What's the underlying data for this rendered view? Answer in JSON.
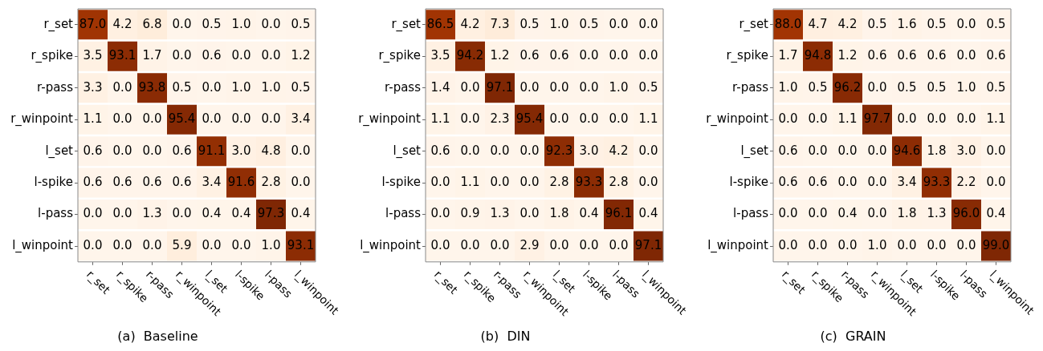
{
  "chart_data": [
    {
      "type": "heatmap",
      "title": "(a)  Baseline",
      "data_labels": true,
      "categories": [
        "r_set",
        "r_spike",
        "r-pass",
        "r_winpoint",
        "l_set",
        "l-spike",
        "l-pass",
        "l_winpoint"
      ],
      "y_categories": [
        "r_set",
        "r_spike",
        "r-pass",
        "r_winpoint",
        "l_set",
        "l-spike",
        "l-pass",
        "l_winpoint"
      ],
      "cells": [
        [
          87.0,
          4.2,
          6.8,
          0.0,
          0.5,
          1.0,
          0.0,
          0.5
        ],
        [
          3.5,
          93.1,
          1.7,
          0.0,
          0.6,
          0.0,
          0.0,
          1.2
        ],
        [
          3.3,
          0.0,
          93.8,
          0.5,
          0.0,
          1.0,
          1.0,
          0.5
        ],
        [
          1.1,
          0.0,
          0.0,
          95.4,
          0.0,
          0.0,
          0.0,
          3.4
        ],
        [
          0.6,
          0.0,
          0.0,
          0.6,
          91.1,
          3.0,
          4.8,
          0.0
        ],
        [
          0.6,
          0.6,
          0.6,
          0.6,
          3.4,
          91.6,
          2.8,
          0.0
        ],
        [
          0.0,
          0.0,
          1.3,
          0.0,
          0.4,
          0.4,
          97.3,
          0.4
        ],
        [
          0.0,
          0.0,
          0.0,
          5.9,
          0.0,
          0.0,
          1.0,
          93.1
        ]
      ],
      "cell_labels": [
        [
          "87.0",
          "4.2",
          "6.8",
          "0.0",
          "0.5",
          "1.0",
          "0.0",
          "0.5"
        ],
        [
          "3.5",
          "93.1",
          "1.7",
          "0.0",
          "0.6",
          "0.0",
          "0.0",
          "1.2"
        ],
        [
          "3.3",
          "0.0",
          "93.8",
          "0.5",
          "0.0",
          "1.0",
          "1.0",
          "0.5"
        ],
        [
          "1.1",
          "0.0",
          "0.0",
          "95.4",
          "0.0",
          "0.0",
          "0.0",
          "3.4"
        ],
        [
          "0.6",
          "0.0",
          "0.0",
          "0.6",
          "91.1",
          "3.0",
          "4.8",
          "0.0"
        ],
        [
          "0.6",
          "0.6",
          "0.6",
          "0.6",
          "3.4",
          "91.6",
          "2.8",
          "0.0"
        ],
        [
          "0.0",
          "0.0",
          "1.3",
          "0.0",
          "0.4",
          "0.4",
          "97.3",
          "0.4"
        ],
        [
          "0.0",
          "0.0",
          "0.0",
          "5.9",
          "0.0",
          "0.0",
          "1.0",
          "93.1"
        ]
      ]
    },
    {
      "type": "heatmap",
      "title": "(b)  DIN",
      "data_labels": true,
      "categories": [
        "r_set",
        "r_spike",
        "r-pass",
        "r_winpoint",
        "l_set",
        "l-spike",
        "l-pass",
        "l_winpoint"
      ],
      "y_categories": [
        "r_set",
        "r_spike",
        "r-pass",
        "r_winpoint",
        "l_set",
        "l-spike",
        "l-pass",
        "l_winpoint"
      ],
      "cells": [
        [
          86.5,
          4.2,
          7.3,
          0.5,
          1.0,
          0.5,
          0.0,
          0.0
        ],
        [
          3.5,
          94.2,
          1.2,
          0.6,
          0.6,
          0.0,
          0.0,
          0.0
        ],
        [
          1.4,
          0.0,
          97.1,
          0.0,
          0.0,
          0.0,
          1.0,
          0.5
        ],
        [
          1.1,
          0.0,
          2.3,
          95.4,
          0.0,
          0.0,
          0.0,
          1.1
        ],
        [
          0.6,
          0.0,
          0.0,
          0.0,
          92.3,
          3.0,
          4.2,
          0.0
        ],
        [
          0.0,
          1.1,
          0.0,
          0.0,
          2.8,
          93.3,
          2.8,
          0.0
        ],
        [
          0.0,
          0.9,
          1.3,
          0.0,
          1.8,
          0.4,
          96.1,
          0.4
        ],
        [
          0.0,
          0.0,
          0.0,
          2.9,
          0.0,
          0.0,
          0.0,
          97.1
        ]
      ],
      "cell_labels": [
        [
          "86.5",
          "4.2",
          "7.3",
          "0.5",
          "1.0",
          "0.5",
          "0.0",
          "0.0"
        ],
        [
          "3.5",
          "94.2",
          "1.2",
          "0.6",
          "0.6",
          "0.0",
          "0.0",
          "0.0"
        ],
        [
          "1.4",
          "0.0",
          "97.1",
          "0.0",
          "0.0",
          "0.0",
          "1.0",
          "0.5"
        ],
        [
          "1.1",
          "0.0",
          "2.3",
          "95.4",
          "0.0",
          "0.0",
          "0.0",
          "1.1"
        ],
        [
          "0.6",
          "0.0",
          "0.0",
          "0.0",
          "92.3",
          "3.0",
          "4.2",
          "0.0"
        ],
        [
          "0.0",
          "1.1",
          "0.0",
          "0.0",
          "2.8",
          "93.3",
          "2.8",
          "0.0"
        ],
        [
          "0.0",
          "0.9",
          "1.3",
          "0.0",
          "1.8",
          "0.4",
          "96.1",
          "0.4"
        ],
        [
          "0.0",
          "0.0",
          "0.0",
          "2.9",
          "0.0",
          "0.0",
          "0.0",
          "97.1"
        ]
      ]
    },
    {
      "type": "heatmap",
      "title": "(c)  GRAIN",
      "data_labels": true,
      "categories": [
        "r_set",
        "r_spike",
        "r-pass",
        "r_winpoint",
        "l_set",
        "l-spike",
        "l-pass",
        "l_winpoint"
      ],
      "y_categories": [
        "r_set",
        "r_spike",
        "r-pass",
        "r_winpoint",
        "l_set",
        "l-spike",
        "l-pass",
        "l_winpoint"
      ],
      "cells": [
        [
          88.0,
          4.7,
          4.2,
          0.5,
          1.6,
          0.5,
          0.0,
          0.5
        ],
        [
          1.7,
          94.8,
          1.2,
          0.6,
          0.6,
          0.6,
          0.0,
          0.6
        ],
        [
          1.0,
          0.5,
          96.2,
          0.0,
          0.5,
          0.5,
          1.0,
          0.5
        ],
        [
          0.0,
          0.0,
          1.1,
          97.7,
          0.0,
          0.0,
          0.0,
          1.1
        ],
        [
          0.6,
          0.0,
          0.0,
          0.0,
          94.6,
          1.8,
          3.0,
          0.0
        ],
        [
          0.6,
          0.6,
          0.0,
          0.0,
          3.4,
          93.3,
          2.2,
          0.0
        ],
        [
          0.0,
          0.0,
          0.4,
          0.0,
          1.8,
          1.3,
          96.0,
          0.4
        ],
        [
          0.0,
          0.0,
          0.0,
          1.0,
          0.0,
          0.0,
          0.0,
          99.0
        ]
      ],
      "cell_labels": [
        [
          "88.0",
          "4.7",
          "4.2",
          "0.5",
          "1.6",
          "0.5",
          "0.0",
          "0.5"
        ],
        [
          "1.7",
          "94.8",
          "1.2",
          "0.6",
          "0.6",
          "0.6",
          "0.0",
          "0.6"
        ],
        [
          "1.0",
          "0.5",
          "96.2",
          "0.0",
          "0.5",
          "0.5",
          "1.0",
          "0.5"
        ],
        [
          "0.0",
          "0.0",
          "1.1",
          "97.7",
          "0.0",
          "0.0",
          "0.0",
          "1.1"
        ],
        [
          "0.6",
          "0.0",
          "0.0",
          "0.0",
          "94.6",
          "1.8",
          "3.0",
          "0.0"
        ],
        [
          "0.6",
          "0.6",
          "0.0",
          "0.0",
          "3.4",
          "93.3",
          "2.2",
          "0.0"
        ],
        [
          "0.0",
          "0.0",
          "0.4",
          "0.0",
          "1.8",
          "1.3",
          "96.0",
          "0.4"
        ],
        [
          "0.0",
          "0.0",
          "0.0",
          "1.0",
          "0.0",
          "0.0",
          "0.0",
          "99.0"
        ]
      ]
    }
  ]
}
